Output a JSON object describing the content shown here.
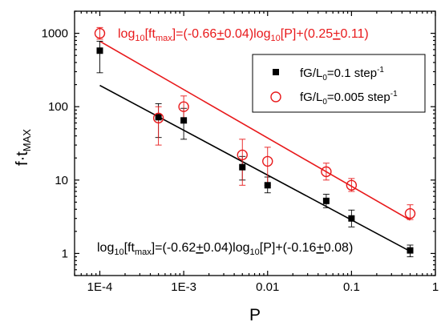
{
  "chart_data": {
    "type": "scatter",
    "x_scale": "log",
    "y_scale": "log",
    "xlim": [
      5e-05,
      1
    ],
    "ylim": [
      0.5,
      2000
    ],
    "xlabel": "P",
    "ylabel": {
      "main": "f·t",
      "sub": "MAX"
    },
    "x_ticks": [
      {
        "value": 0.0001,
        "label": "1E-4"
      },
      {
        "value": 0.001,
        "label": "1E-3"
      },
      {
        "value": 0.01,
        "label": "0.01"
      },
      {
        "value": 0.1,
        "label": "0.1"
      },
      {
        "value": 1,
        "label": "1"
      }
    ],
    "y_ticks": [
      {
        "value": 1,
        "label": "1"
      },
      {
        "value": 10,
        "label": "10"
      },
      {
        "value": 100,
        "label": "100"
      },
      {
        "value": 1000,
        "label": "1000"
      }
    ],
    "legend_position": "top-right",
    "series": [
      {
        "name": "fG/L0=0.1 step-1",
        "legend": {
          "pre": "fG/L",
          "sub": "0",
          "mid": "=0.1 step",
          "sup": "-1"
        },
        "marker": "filled-square",
        "color": "#000000",
        "points": [
          {
            "x": 0.0001,
            "y": 580,
            "ylo": 290,
            "yhi": 780
          },
          {
            "x": 0.0005,
            "y": 72,
            "ylo": 38,
            "yhi": 110
          },
          {
            "x": 0.001,
            "y": 65,
            "ylo": 36,
            "yhi": 95
          },
          {
            "x": 0.005,
            "y": 15,
            "ylo": 10,
            "yhi": 21
          },
          {
            "x": 0.01,
            "y": 8.5,
            "ylo": 6.7,
            "yhi": 11
          },
          {
            "x": 0.05,
            "y": 5.2,
            "ylo": 4.2,
            "yhi": 6.4
          },
          {
            "x": 0.1,
            "y": 3.0,
            "ylo": 2.3,
            "yhi": 3.9
          },
          {
            "x": 0.5,
            "y": 1.1,
            "ylo": 0.9,
            "yhi": 1.3
          }
        ],
        "fit": {
          "x": [
            0.0001,
            0.5
          ],
          "y": [
            195,
            1.07
          ]
        }
      },
      {
        "name": "fG/L0=0.005 step-1",
        "legend": {
          "pre": "fG/L",
          "sub": "0",
          "mid": "=0.005 step",
          "sup": "-1"
        },
        "marker": "open-circle",
        "color": "#e8191b",
        "points": [
          {
            "x": 0.0001,
            "y": 1000,
            "ylo": 830,
            "yhi": 1200
          },
          {
            "x": 0.0005,
            "y": 70,
            "ylo": 30,
            "yhi": 100
          },
          {
            "x": 0.001,
            "y": 100,
            "ylo": 60,
            "yhi": 140
          },
          {
            "x": 0.005,
            "y": 22,
            "ylo": 8.5,
            "yhi": 36
          },
          {
            "x": 0.01,
            "y": 18,
            "ylo": 8.5,
            "yhi": 28
          },
          {
            "x": 0.05,
            "y": 13,
            "ylo": 10,
            "yhi": 17
          },
          {
            "x": 0.1,
            "y": 8.5,
            "ylo": 7,
            "yhi": 10.5
          },
          {
            "x": 0.5,
            "y": 3.5,
            "ylo": 2.9,
            "yhi": 4.6
          }
        ],
        "fit": {
          "x": [
            0.0001,
            0.5
          ],
          "y": [
            780,
            2.85
          ]
        }
      }
    ],
    "annotations": [
      {
        "color": "#e8191b",
        "position": "top",
        "parts": [
          {
            "t": "log"
          },
          {
            "t": "10",
            "sub": true
          },
          {
            "t": "[ft"
          },
          {
            "t": "max",
            "sub": true
          },
          {
            "t": "]=(-0.66"
          },
          {
            "t": "+",
            "u": true
          },
          {
            "t": "0.04)log"
          },
          {
            "t": "10",
            "sub": true
          },
          {
            "t": "[P]+(0.25"
          },
          {
            "t": "+",
            "u": true
          },
          {
            "t": "0.11)"
          }
        ]
      },
      {
        "color": "#000000",
        "position": "bottom",
        "parts": [
          {
            "t": "log"
          },
          {
            "t": "10",
            "sub": true
          },
          {
            "t": "[ft"
          },
          {
            "t": "max",
            "sub": true
          },
          {
            "t": "]=(-0.62"
          },
          {
            "t": "+",
            "u": true
          },
          {
            "t": "0.04)log"
          },
          {
            "t": "10",
            "sub": true
          },
          {
            "t": "[P]+(-0.16"
          },
          {
            "t": "+",
            "u": true
          },
          {
            "t": "0.08)"
          }
        ]
      }
    ]
  }
}
